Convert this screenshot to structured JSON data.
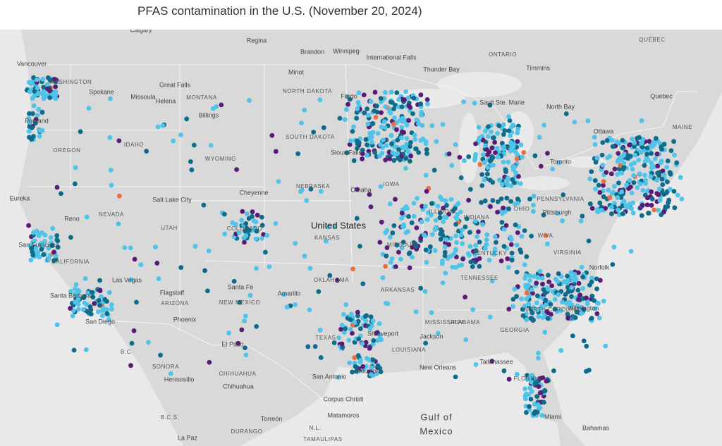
{
  "header": {
    "title": "PFAS contamination in the U.S. (November 20, 2024)"
  },
  "map": {
    "labels": [
      "Calgary",
      "Regina",
      "Brandon",
      "Winnipeg",
      "International Falls",
      "ONTARIO",
      "Timmins",
      "QUÉBEC",
      "Thunder Bay",
      "Vancouver",
      "WASHINGTON",
      "Spokane",
      "Great Falls",
      "Missoula",
      "MONTANA",
      "Helena",
      "Billings",
      "Minot",
      "NORTH DAKOTA",
      "Fargo",
      "Sault Ste. Marie",
      "North Bay",
      "Quebec",
      "Ottawa",
      "MAINE",
      "Portland",
      "OREGON",
      "IDAHO",
      "WYOMING",
      "SOUTH DAKOTA",
      "Sioux Falls",
      "Toronto",
      "Eureka",
      "NEVADA",
      "Salt Lake City",
      "Cheyenne",
      "NEBRASKA",
      "Omaha",
      "IOWA",
      "PENNSYLVANIA",
      "Reno",
      "UTAH",
      "COLORADO",
      "United States",
      "KANSAS",
      "MISSOURI",
      "ILLINOIS",
      "INDIANA",
      "OHIO",
      "Pittsburgh",
      "W.VA.",
      "San Francisco",
      "CALIFORNIA",
      "KENTUCKY",
      "VIRGINIA",
      "Norfolk",
      "Las Vegas",
      "Flagstaff",
      "Santa Fe",
      "Amarillo",
      "OKLAHOMA",
      "ARKANSAS",
      "TENNESSEE",
      "NORTH CAROLINA",
      "Wilmington",
      "Santa Barbara",
      "ARIZONA",
      "NEW MEXICO",
      "Phoenix",
      "San Diego",
      "MISSISSIPPI",
      "ALABAMA",
      "GEORGIA",
      "Shreveport",
      "Jackson",
      "El Paso",
      "B.C.",
      "SONORA",
      "Hermosillo",
      "CHIHUAHUA",
      "Chihuahua",
      "TEXAS",
      "LOUISIANA",
      "Tallahassee",
      "San Antonio",
      "Houston",
      "New Orleans",
      "FLORIDA",
      "Corpus Christi",
      "Matamoros",
      "B.C.S.",
      "Torreón",
      "Gulf of",
      "Mexico",
      "Miami",
      "Bahamas",
      "La Paz",
      "DURANGO",
      "N.L.",
      "TAMAULIPAS"
    ]
  }
}
